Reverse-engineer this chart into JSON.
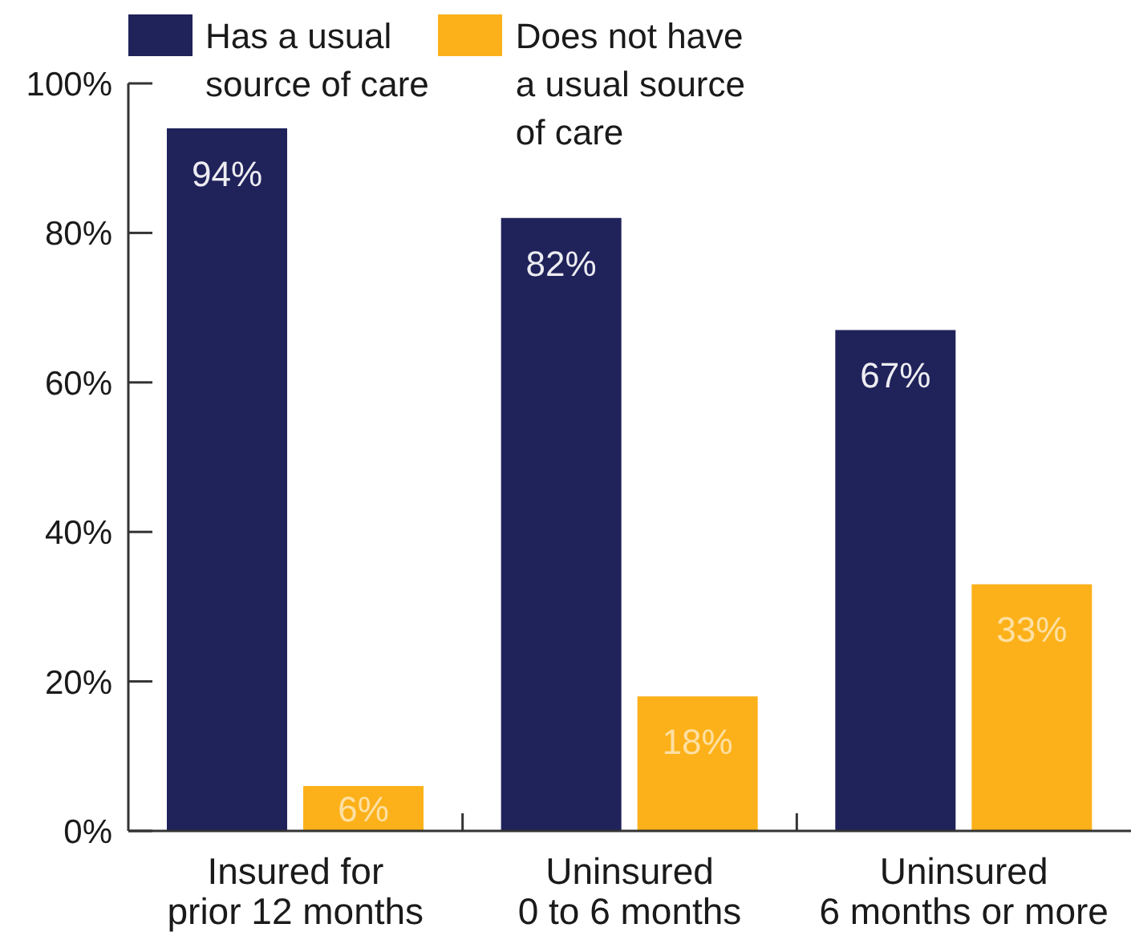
{
  "chart_data": {
    "type": "bar",
    "categories": [
      "Insured for\nprior 12 months",
      "Uninsured\n0 to 6 months",
      "Uninsured\n6 months or more"
    ],
    "series": [
      {
        "name": "Has a usual\nsource of care",
        "color": "#20225a",
        "values": [
          94,
          82,
          67
        ],
        "value_labels": [
          "94%",
          "82%",
          "67%"
        ]
      },
      {
        "name": "Does not have\na usual source\nof care",
        "color": "#fcb11a",
        "values": [
          6,
          18,
          33
        ],
        "value_labels": [
          "6%",
          "18%",
          "33%"
        ]
      }
    ],
    "ylim": [
      0,
      100
    ],
    "yticks": [
      {
        "value": 0,
        "label": "0%"
      },
      {
        "value": 20,
        "label": "20%"
      },
      {
        "value": 40,
        "label": "40%"
      },
      {
        "value": 60,
        "label": "60%"
      },
      {
        "value": 80,
        "label": "80%"
      },
      {
        "value": 100,
        "label": "100%"
      }
    ],
    "legend": "top left"
  }
}
